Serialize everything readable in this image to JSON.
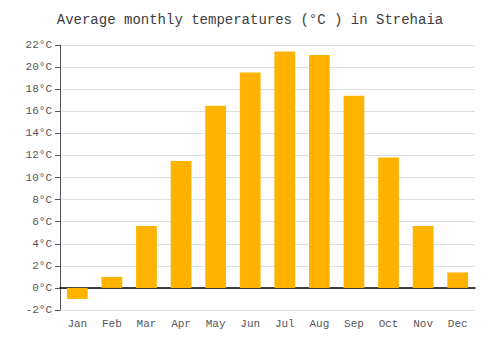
{
  "chart_data": {
    "type": "bar",
    "title": "Average monthly temperatures (°C ) in Strehaia",
    "categories": [
      "Jan",
      "Feb",
      "Mar",
      "Apr",
      "May",
      "Jun",
      "Jul",
      "Aug",
      "Sep",
      "Oct",
      "Nov",
      "Dec"
    ],
    "values": [
      -1.0,
      1.0,
      5.6,
      11.5,
      16.5,
      19.5,
      21.4,
      21.1,
      17.4,
      11.8,
      5.6,
      1.4
    ],
    "color": "#FFB300",
    "ylim": [
      -2,
      22
    ],
    "yticks": [
      {
        "value": -2,
        "label": "-2°C"
      },
      {
        "value": 0,
        "label": "0°C"
      },
      {
        "value": 2,
        "label": "2°C"
      },
      {
        "value": 4,
        "label": "4°C"
      },
      {
        "value": 6,
        "label": "6°C"
      },
      {
        "value": 8,
        "label": "8°C"
      },
      {
        "value": 10,
        "label": "10°C"
      },
      {
        "value": 12,
        "label": "12°C"
      },
      {
        "value": 14,
        "label": "14°C"
      },
      {
        "value": 16,
        "label": "16°C"
      },
      {
        "value": 18,
        "label": "18°C"
      },
      {
        "value": 20,
        "label": "20°C"
      },
      {
        "value": 22,
        "label": "22°C"
      }
    ],
    "grid": true
  }
}
